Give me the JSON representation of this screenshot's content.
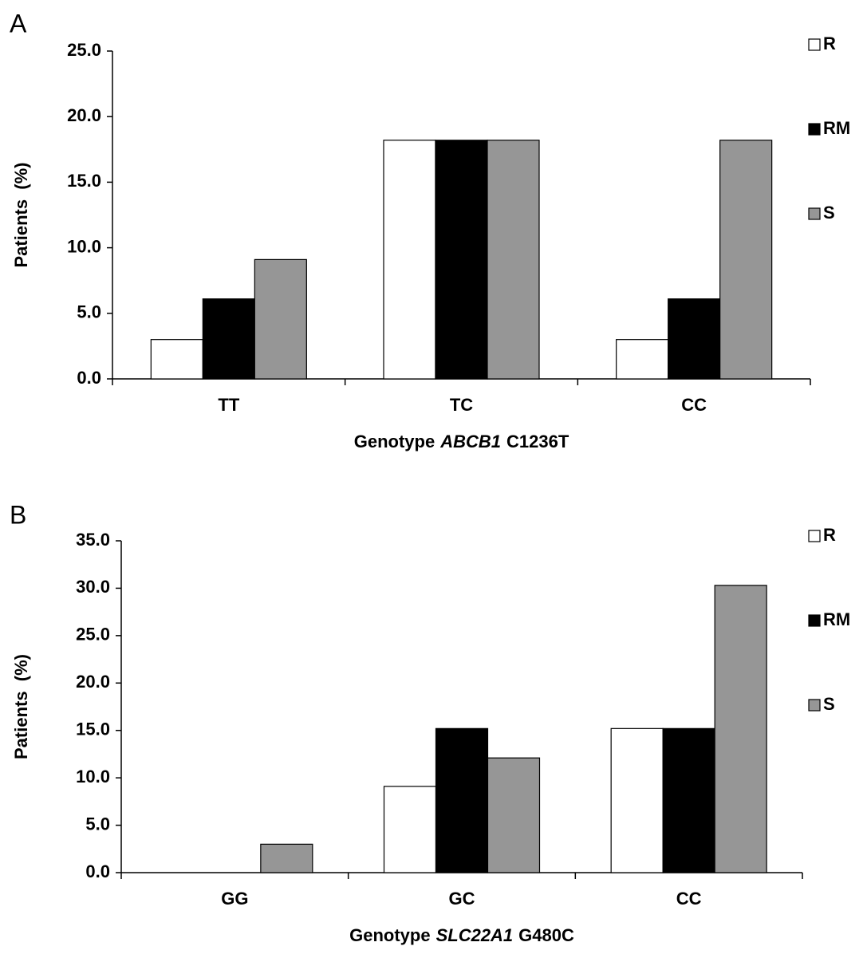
{
  "chart_data": [
    {
      "type": "bar",
      "panel": "A",
      "ylabel": "Patients  (%)",
      "xlabel_parts": [
        "Genotype",
        "ABCB1",
        "C1236T"
      ],
      "categories": [
        "TT",
        "TC",
        "CC"
      ],
      "series": [
        {
          "name": "R",
          "color": "#ffffff",
          "values": [
            3.0,
            18.2,
            3.0
          ]
        },
        {
          "name": "RM",
          "color": "#000000",
          "values": [
            6.1,
            18.2,
            6.1
          ]
        },
        {
          "name": "S",
          "color": "#969696",
          "values": [
            9.1,
            18.2,
            18.2
          ]
        }
      ],
      "ylim": [
        0,
        25
      ],
      "yticks": [
        {
          "value": 0,
          "label": "0.0"
        },
        {
          "value": 5,
          "label": "5.0"
        },
        {
          "value": 10,
          "label": "10.0"
        },
        {
          "value": 15,
          "label": "15.0"
        },
        {
          "value": 20,
          "label": "20.0"
        },
        {
          "value": 25,
          "label": "25.0"
        }
      ],
      "grid": false
    },
    {
      "type": "bar",
      "panel": "B",
      "ylabel": "Patients  (%)",
      "xlabel_parts": [
        "Genotype",
        "SLC22A1",
        "G480C"
      ],
      "categories": [
        "GG",
        "GC",
        "CC"
      ],
      "series": [
        {
          "name": "R",
          "color": "#ffffff",
          "values": [
            0,
            9.1,
            15.2
          ]
        },
        {
          "name": "RM",
          "color": "#000000",
          "values": [
            0,
            15.2,
            15.2
          ]
        },
        {
          "name": "S",
          "color": "#969696",
          "values": [
            3.0,
            12.1,
            30.3
          ]
        }
      ],
      "ylim": [
        0,
        35
      ],
      "yticks": [
        {
          "value": 0,
          "label": "0.0"
        },
        {
          "value": 5,
          "label": "5.0"
        },
        {
          "value": 10,
          "label": "10.0"
        },
        {
          "value": 15,
          "label": "15.0"
        },
        {
          "value": 20,
          "label": "20.0"
        },
        {
          "value": 25,
          "label": "25.0"
        },
        {
          "value": 30,
          "label": "30.0"
        },
        {
          "value": 35,
          "label": "35.0"
        }
      ],
      "grid": false
    }
  ]
}
